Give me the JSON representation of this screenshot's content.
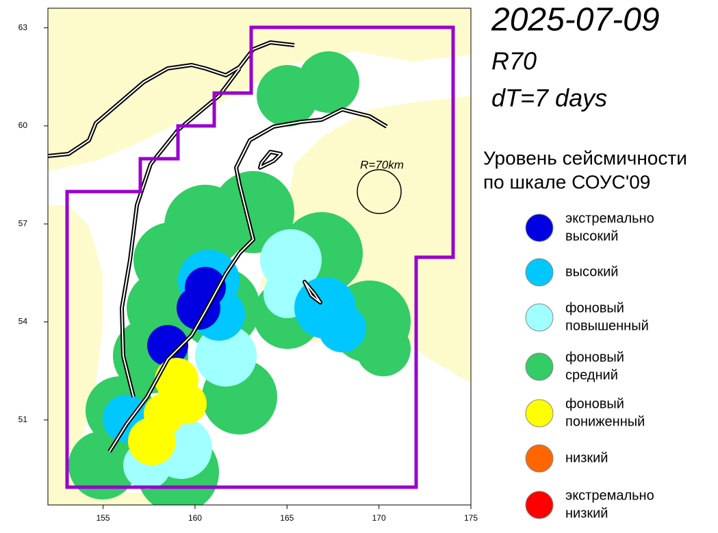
{
  "header": {
    "date": "2025-07-09",
    "radius": "R70",
    "period": "dT=7 days"
  },
  "map": {
    "annotation": "R=70km",
    "xlim": [
      152,
      175
    ],
    "ylim": [
      48.4,
      63.6
    ],
    "xticks": [
      155,
      160,
      165,
      170,
      175
    ],
    "yticks": [
      51,
      54,
      57,
      60,
      63
    ]
  },
  "legend": {
    "title": [
      "Уровень сейсмичности",
      "по шкале СОУС'09"
    ],
    "items": [
      {
        "label": [
          "экстремально",
          "высокий"
        ],
        "color": "#0000e0"
      },
      {
        "label": [
          "высокий"
        ],
        "color": "#00c8ff"
      },
      {
        "label": [
          "фоновый",
          "повышенный"
        ],
        "color": "#a0ffff"
      },
      {
        "label": [
          "фоновый",
          "средний"
        ],
        "color": "#33cc66"
      },
      {
        "label": [
          "фоновый",
          "пониженный"
        ],
        "color": "#ffff00"
      },
      {
        "label": [
          "низкий"
        ],
        "color": "#ff6600"
      },
      {
        "label": [
          "экстремально",
          "низкий"
        ],
        "color": "#ff0000"
      }
    ]
  }
}
